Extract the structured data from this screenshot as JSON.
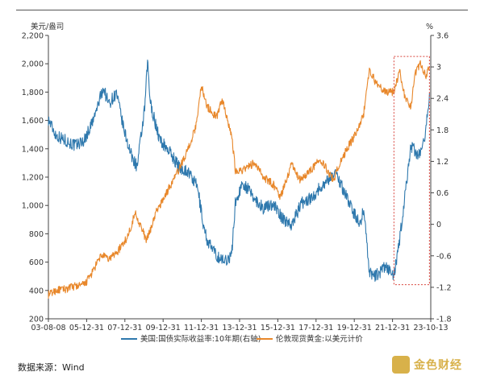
{
  "source_text": "数据来源：Wind",
  "logo_text": "金色财经",
  "chart_data": {
    "type": "line",
    "left_axis_unit": "美元/盎司",
    "right_axis_unit": "%",
    "left_ylim": [
      200,
      2200
    ],
    "left_ticks": [
      "200",
      "400",
      "600",
      "800",
      "1,000",
      "1,200",
      "1,400",
      "1,600",
      "1,800",
      "2,000",
      "2,200"
    ],
    "right_ylim": [
      -1.8,
      3.6
    ],
    "right_ticks": [
      "-1.8",
      "-1.2",
      "-0.6",
      "0",
      "0.6",
      "1.2",
      "1.8",
      "2.4",
      "3",
      "3.6"
    ],
    "x_ticks": [
      "03-08-08",
      "05-12-31",
      "07-12-31",
      "09-12-31",
      "11-12-31",
      "13-12-31",
      "15-12-31",
      "17-12-31",
      "19-12-31",
      "21-12-31",
      "23-10-13"
    ],
    "grid": false,
    "legend_position": "bottom",
    "series": [
      {
        "name": "美国:国债实际收益率:10年期(右轴)",
        "axis": "right",
        "color": "#2e78ad",
        "x": [
          2003.6,
          2004.0,
          2004.5,
          2005.0,
          2005.5,
          2006.0,
          2006.5,
          2006.8,
          2007.2,
          2007.6,
          2008.0,
          2008.3,
          2008.7,
          2008.85,
          2009.0,
          2009.5,
          2010.0,
          2010.5,
          2011.0,
          2011.5,
          2011.8,
          2012.0,
          2012.5,
          2012.9,
          2013.3,
          2013.5,
          2013.9,
          2014.5,
          2015.0,
          2015.5,
          2016.0,
          2016.5,
          2017.0,
          2017.5,
          2018.0,
          2018.8,
          2019.3,
          2019.8,
          2020.1,
          2020.3,
          2020.6,
          2020.9,
          2021.5,
          2021.9,
          2022.2,
          2022.5,
          2022.8,
          2023.0,
          2023.3,
          2023.6,
          2023.78
        ],
        "y": [
          2.0,
          1.7,
          1.6,
          1.5,
          1.6,
          2.0,
          2.6,
          2.3,
          2.5,
          1.8,
          1.3,
          1.1,
          2.2,
          3.1,
          2.3,
          1.6,
          1.4,
          1.1,
          1.0,
          0.7,
          0.0,
          -0.3,
          -0.6,
          -0.7,
          -0.6,
          0.4,
          0.8,
          0.5,
          0.3,
          0.4,
          0.1,
          0.0,
          0.4,
          0.5,
          0.7,
          1.0,
          0.6,
          0.2,
          0.0,
          0.3,
          -0.9,
          -1.0,
          -0.8,
          -1.0,
          -0.3,
          0.6,
          1.5,
          1.4,
          1.3,
          1.8,
          2.5
        ]
      },
      {
        "name": "伦敦现货黄金:以美元计价",
        "axis": "left",
        "color": "#e8872a",
        "x": [
          2003.6,
          2004.0,
          2004.5,
          2005.0,
          2005.5,
          2005.9,
          2006.4,
          2006.8,
          2007.3,
          2007.8,
          2008.2,
          2008.8,
          2009.3,
          2009.9,
          2010.5,
          2011.0,
          2011.4,
          2011.7,
          2012.0,
          2012.5,
          2012.8,
          2013.3,
          2013.5,
          2013.9,
          2014.5,
          2015.0,
          2015.5,
          2015.9,
          2016.5,
          2016.9,
          2017.5,
          2018.0,
          2018.7,
          2019.0,
          2019.5,
          2019.9,
          2020.3,
          2020.6,
          2021.0,
          2021.5,
          2021.9,
          2022.2,
          2022.5,
          2022.8,
          2023.0,
          2023.3,
          2023.6,
          2023.78
        ],
        "y": [
          370,
          400,
          410,
          430,
          440,
          520,
          650,
          620,
          680,
          780,
          950,
          750,
          950,
          1100,
          1250,
          1400,
          1550,
          1850,
          1700,
          1620,
          1750,
          1500,
          1250,
          1250,
          1300,
          1200,
          1150,
          1060,
          1300,
          1180,
          1250,
          1330,
          1180,
          1290,
          1420,
          1510,
          1650,
          1960,
          1850,
          1800,
          1800,
          1950,
          1750,
          1700,
          1920,
          2000,
          1920,
          1980
        ]
      }
    ],
    "highlight_box": {
      "x_start": 2021.9,
      "x_end": 2023.78,
      "style": "dashed-red"
    }
  }
}
